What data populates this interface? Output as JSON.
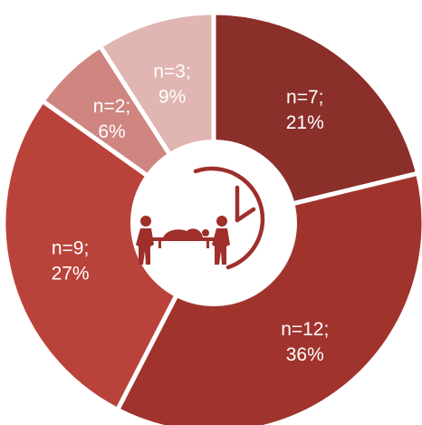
{
  "chart_data": {
    "type": "pie",
    "variant": "donut",
    "title": "",
    "legend": "none",
    "center_icon": "stretcher-transport-with-clock-icon",
    "slices": [
      {
        "count_label": "n=7;",
        "percent_label": "21%",
        "value": 7,
        "percent": 21,
        "color": "#8b2f2a"
      },
      {
        "count_label": "n=12;",
        "percent_label": "36%",
        "value": 12,
        "percent": 36,
        "color": "#a0342d"
      },
      {
        "count_label": "n=9;",
        "percent_label": "27%",
        "value": 9,
        "percent": 27,
        "color": "#b9433a"
      },
      {
        "count_label": "n=2;",
        "percent_label": "6%",
        "value": 2,
        "percent": 6,
        "color": "#cf8580"
      },
      {
        "count_label": "n=3;",
        "percent_label": "9%",
        "value": 3,
        "percent": 9,
        "color": "#e0b5b2"
      }
    ],
    "center_icon_color": "#9e2f2b",
    "separator_color": "#ffffff"
  }
}
